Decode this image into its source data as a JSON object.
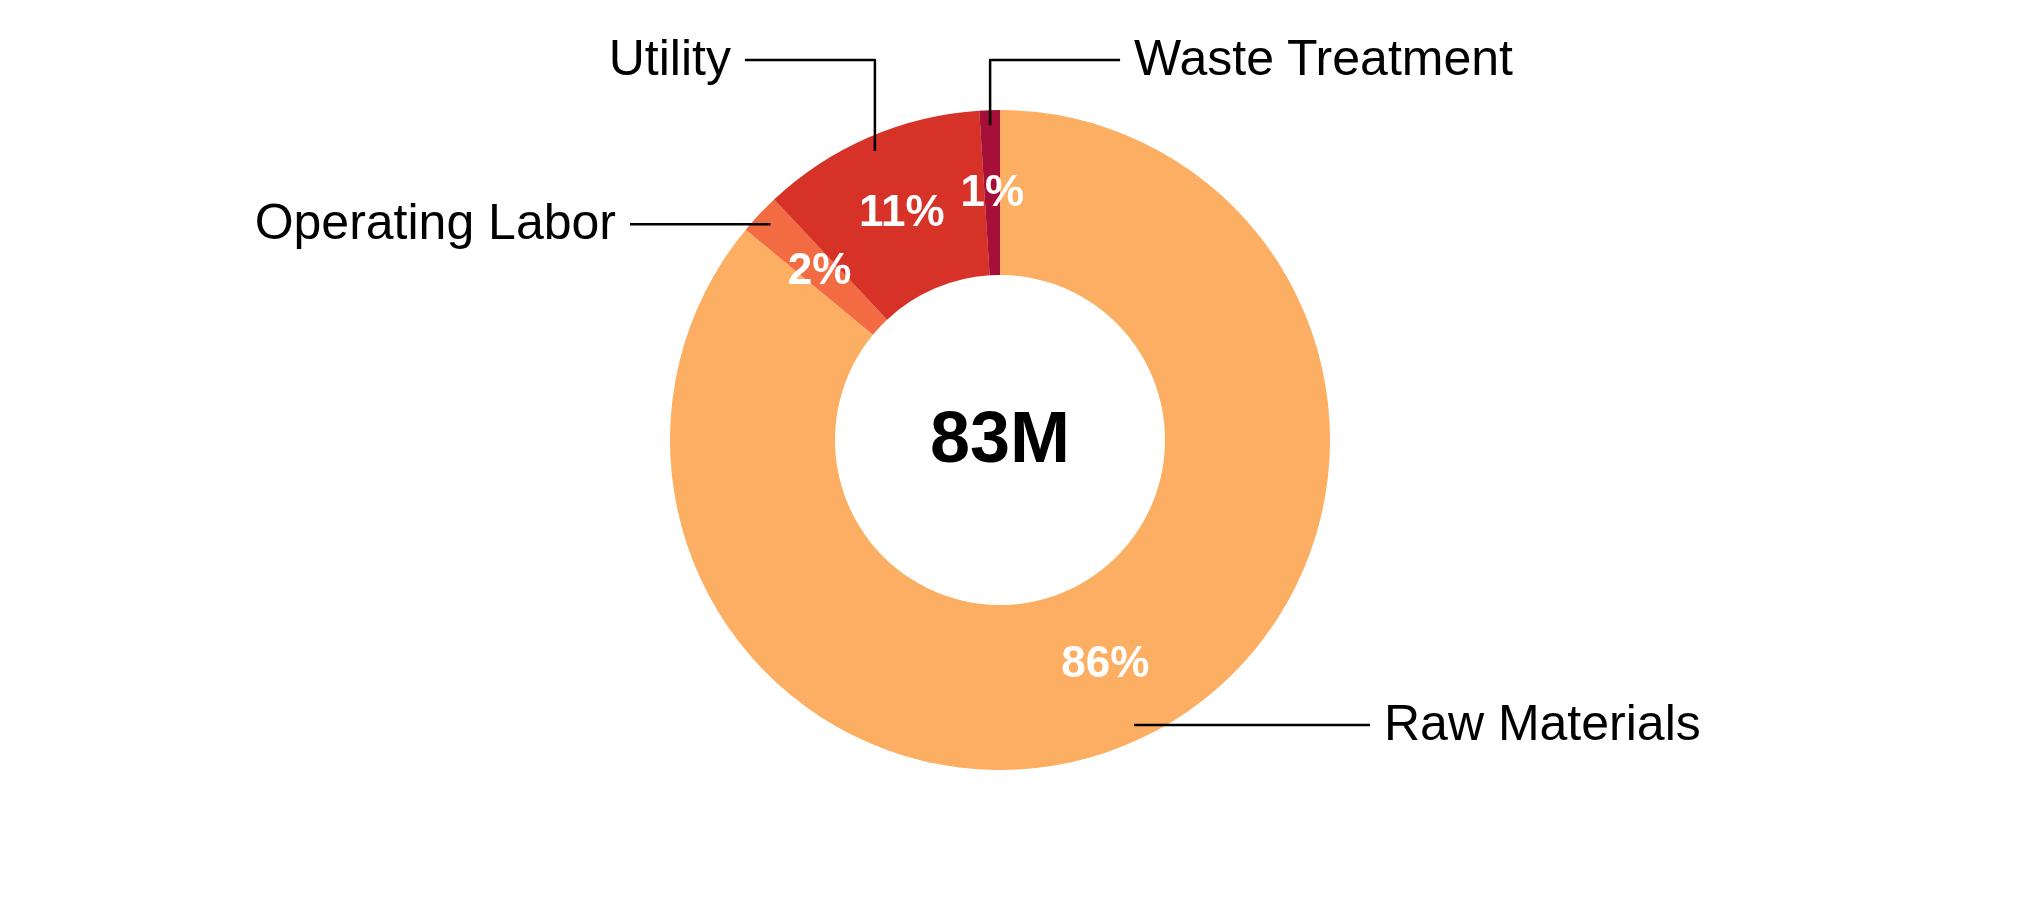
{
  "chart_data": {
    "type": "donut",
    "categories": [
      "Raw Materials",
      "Operating Labor",
      "Utility",
      "Waste Treatment"
    ],
    "values": [
      86,
      2,
      11,
      1
    ],
    "colors": [
      "#fcae62",
      "#f26b43",
      "#d63228",
      "#a50f38"
    ],
    "value_labels": [
      "86%",
      "2%",
      "11%",
      "1%"
    ],
    "annotations": [
      "83M"
    ]
  }
}
